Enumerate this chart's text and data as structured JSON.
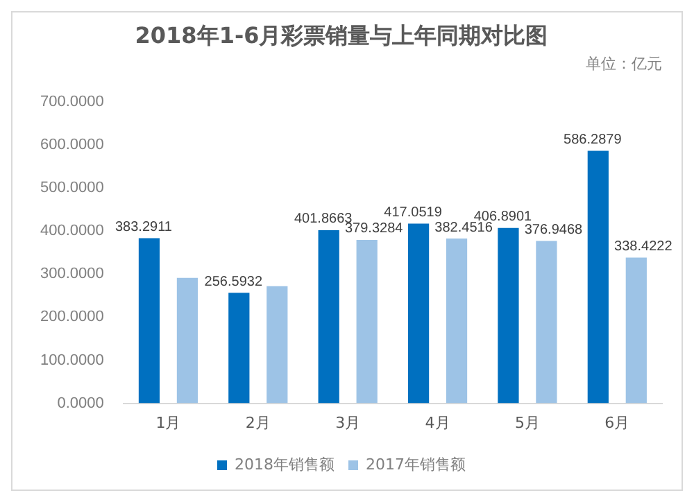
{
  "chart_data": {
    "type": "bar",
    "title": "2018年1-6月彩票销量与上年同期对比图",
    "subtitle": "单位：亿元",
    "categories": [
      "1月",
      "2月",
      "3月",
      "4月",
      "5月",
      "6月"
    ],
    "series": [
      {
        "name": "2018年销售额",
        "color": "#0070c0",
        "values": [
          383.2911,
          256.5932,
          401.8663,
          417.0519,
          406.8901,
          586.2879
        ],
        "value_labels": [
          "383.2911",
          "256.5932",
          "401.8663",
          "417.0519",
          "406.8901",
          "586.2879"
        ]
      },
      {
        "name": "2017年销售额",
        "color": "#9dc3e6",
        "values": [
          291,
          272,
          379.3284,
          382.4516,
          376.9468,
          338.4222
        ],
        "value_labels": [
          null,
          null,
          "379.3284",
          "382.4516",
          "376.9468",
          "338.4222"
        ]
      }
    ],
    "ylim": [
      0,
      700
    ],
    "yticks": [
      {
        "value": 0,
        "label": "0.0000"
      },
      {
        "value": 100,
        "label": "100.0000"
      },
      {
        "value": 200,
        "label": "200.0000"
      },
      {
        "value": 300,
        "label": "300.0000"
      },
      {
        "value": 400,
        "label": "400.0000"
      },
      {
        "value": 500,
        "label": "500.0000"
      },
      {
        "value": 600,
        "label": "600.0000"
      },
      {
        "value": 700,
        "label": "700.0000"
      }
    ],
    "grid": false,
    "legend": "bottom"
  }
}
